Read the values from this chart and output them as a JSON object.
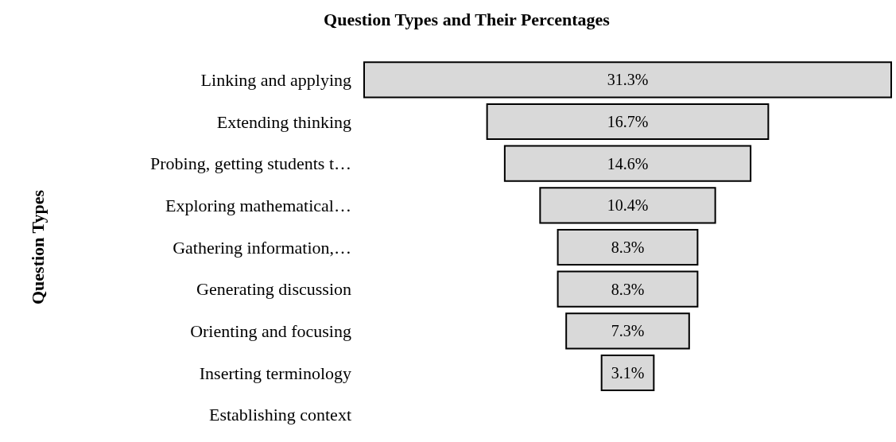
{
  "chart_data": {
    "type": "other",
    "title": "Question Types and Their Percentages",
    "ylabel": "Question Types",
    "categories": [
      "Linking and applying",
      "Extending thinking",
      "Probing, getting students t…",
      "Exploring mathematical…",
      "Gathering information,…",
      "Generating discussion",
      "Orienting and focusing",
      "Inserting terminology",
      "Establishing context"
    ],
    "values": [
      31.3,
      16.7,
      14.6,
      10.4,
      8.3,
      8.3,
      7.3,
      3.1,
      null
    ],
    "value_labels": [
      "31.3%",
      "16.7%",
      "14.6%",
      "10.4%",
      "8.3%",
      "8.3%",
      "7.3%",
      "3.1%",
      null
    ],
    "color": "#d9d9d9"
  }
}
